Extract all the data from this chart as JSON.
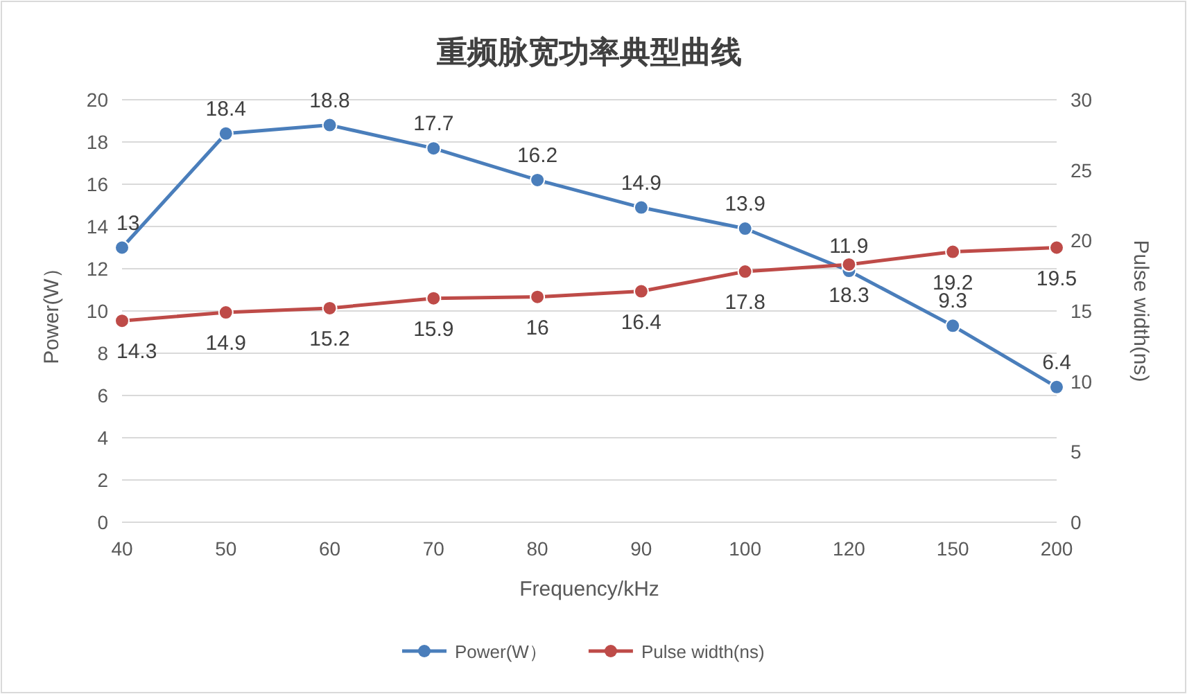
{
  "chart_data": {
    "type": "line",
    "title": "重频脉宽功率典型曲线",
    "xlabel": "Frequency/kHz",
    "ylabel": "Power(W）",
    "y2label": "Pulse width(ns)",
    "categories": [
      "40",
      "50",
      "60",
      "70",
      "80",
      "90",
      "100",
      "120",
      "150",
      "200"
    ],
    "series": [
      {
        "name": "Power(W）",
        "color": "#4a7ebb",
        "values": [
          13,
          18.4,
          18.8,
          17.7,
          16.2,
          14.9,
          13.9,
          11.9,
          9.3,
          6.4
        ]
      },
      {
        "name": "Pulse width(ns)",
        "color": "#be4b48",
        "axis": "y2",
        "values": [
          14.3,
          14.9,
          15.2,
          15.9,
          16,
          16.4,
          17.8,
          18.3,
          19.2,
          19.5
        ]
      }
    ],
    "ylim": [
      0,
      20
    ],
    "yticks": [
      0,
      2,
      4,
      6,
      8,
      10,
      12,
      14,
      16,
      18,
      20
    ],
    "y2lim": [
      0,
      30
    ],
    "y2ticks": [
      0,
      5,
      10,
      15,
      20,
      25,
      30
    ],
    "data_labels": true,
    "grid": "y",
    "legend": "bottom",
    "marker": "circle",
    "line_style": "solid"
  }
}
